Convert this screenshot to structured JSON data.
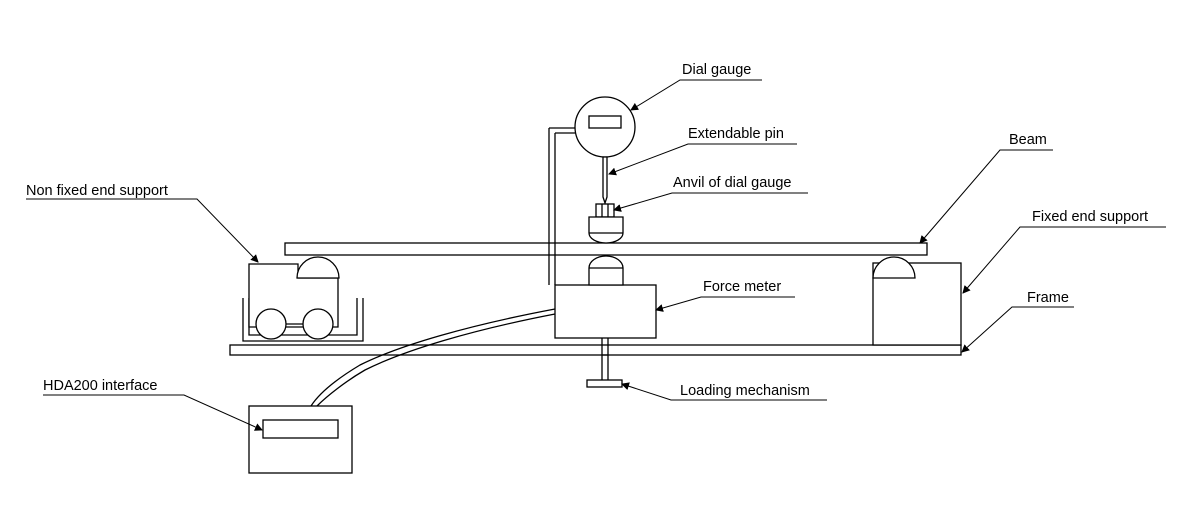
{
  "labels": {
    "dial_gauge": "Dial gauge",
    "extendable_pin": "Extendable pin",
    "anvil": "Anvil of dial gauge",
    "beam": "Beam",
    "non_fixed_support": "Non fixed end support",
    "fixed_support": "Fixed end support",
    "force_meter": "Force meter",
    "frame": "Frame",
    "hda200": "HDA200 interface",
    "loading_mechanism": "Loading mechanism"
  }
}
